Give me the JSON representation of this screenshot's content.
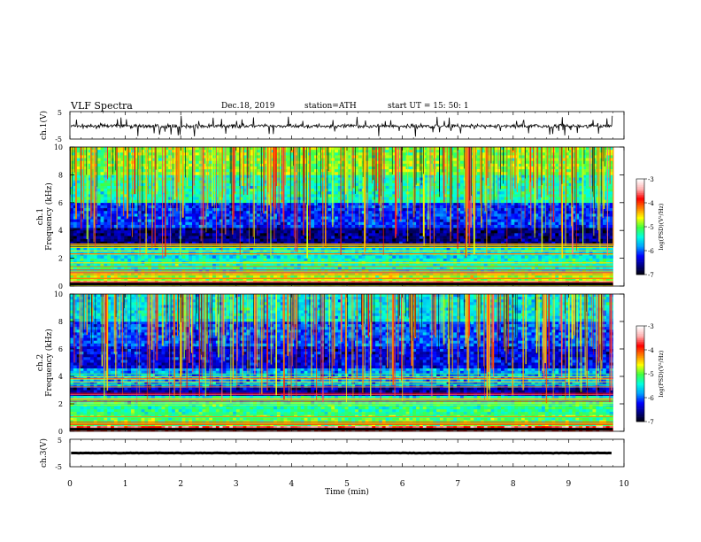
{
  "header": {
    "title": "VLF  Spectra",
    "date": "Dec.18, 2019",
    "station": "station=ATH",
    "start": "start  UT  =    15: 50: 1"
  },
  "chart_data": [
    {
      "type": "line",
      "panel": "waveform-ch1",
      "ylabel": "ch.1(V)",
      "ylim": [
        -5,
        5
      ],
      "yticks": [
        "5",
        "-5"
      ],
      "xlim": [
        0,
        10
      ],
      "approx_level": -0.3,
      "approx_amplitude": 1.2,
      "color": "#000000"
    },
    {
      "type": "heatmap",
      "panel": "spectrogram-ch1",
      "ylabel": "Frequency  (kHz)",
      "channel_label": "ch.1",
      "ylim": [
        0,
        10
      ],
      "yticks": [
        "0",
        "2",
        "4",
        "6",
        "8",
        "10"
      ],
      "xlim": [
        0,
        9.8
      ],
      "frequency_bands_kHz": [
        {
          "from": 0,
          "to": 0.4,
          "level": -3.5
        },
        {
          "from": 0.4,
          "to": 1.0,
          "level": -4.8
        },
        {
          "from": 1.0,
          "to": 2.0,
          "level": -5.3
        },
        {
          "from": 2.0,
          "to": 2.8,
          "level": -5.5
        },
        {
          "from": 2.8,
          "to": 4.2,
          "level": -6.6
        },
        {
          "from": 4.2,
          "to": 6.0,
          "level": -6.1
        },
        {
          "from": 6.0,
          "to": 8.0,
          "level": -5.3
        },
        {
          "from": 8.0,
          "to": 10.0,
          "level": -4.9
        }
      ],
      "colorbar": {
        "label": "log(PSD)(V²/Hz)",
        "ticks": [
          "-3",
          "-4",
          "-5",
          "-6",
          "-7"
        ],
        "range": [
          -7,
          -3
        ]
      }
    },
    {
      "type": "heatmap",
      "panel": "spectrogram-ch2",
      "ylabel": "Frequency  (kHz)",
      "channel_label": "ch.2",
      "ylim": [
        0,
        10
      ],
      "yticks": [
        "0",
        "2",
        "4",
        "6",
        "8",
        "10"
      ],
      "xlim": [
        0,
        9.8
      ],
      "frequency_bands_kHz": [
        {
          "from": 0,
          "to": 0.4,
          "level": -3.6
        },
        {
          "from": 0.4,
          "to": 1.2,
          "level": -5.0
        },
        {
          "from": 1.2,
          "to": 2.0,
          "level": -5.2
        },
        {
          "from": 2.0,
          "to": 2.6,
          "level": -5.4
        },
        {
          "from": 2.6,
          "to": 3.2,
          "level": -6.5
        },
        {
          "from": 3.2,
          "to": 4.6,
          "level": -5.8
        },
        {
          "from": 4.6,
          "to": 6.2,
          "level": -6.3
        },
        {
          "from": 6.2,
          "to": 8.0,
          "level": -6.0
        },
        {
          "from": 8.0,
          "to": 10.0,
          "level": -5.5
        }
      ],
      "colorbar": {
        "label": "log(PSD)(V²/Hz)",
        "ticks": [
          "-3",
          "-4",
          "-5",
          "-6",
          "-7"
        ],
        "range": [
          -7,
          -3
        ]
      }
    },
    {
      "type": "line",
      "panel": "waveform-ch3",
      "ylabel": "ch.3(V)",
      "ylim": [
        -5,
        5
      ],
      "yticks": [
        "5",
        "-5"
      ],
      "xlim": [
        0,
        10
      ],
      "approx_level": 0,
      "approx_amplitude": 0.2,
      "color": "#000000"
    }
  ],
  "xaxis": {
    "label": "Time  (min)",
    "ticks": [
      "0",
      "1",
      "2",
      "3",
      "4",
      "5",
      "6",
      "7",
      "8",
      "9",
      "10"
    ]
  },
  "colors": {
    "colormap": [
      "#000000",
      "#000080",
      "#0000ff",
      "#00a0ff",
      "#00ffe0",
      "#40ff40",
      "#ffff00",
      "#ff8000",
      "#ff0000",
      "#ffb0b0",
      "#ffffff"
    ]
  }
}
